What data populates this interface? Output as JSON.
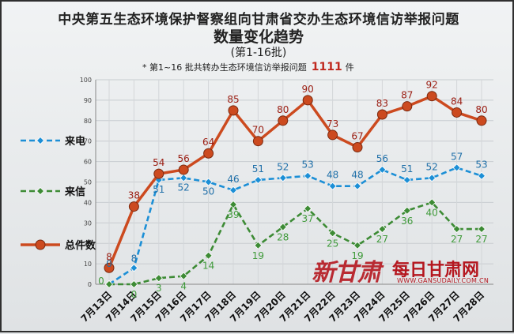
{
  "title": {
    "line1": "中央第五生态环境保护督察组向甘肃省交办生态环境信访举报问题",
    "line2": "数量变化趋势",
    "line3": "(第1-16批)"
  },
  "note": {
    "prefix": "* 第1~16 批共转办生态环境信访举报问题",
    "count": "1111",
    "suffix": "件"
  },
  "watermark": {
    "brand_cn": "新甘肃",
    "brand_daily": "每日甘肃网",
    "url": "WWW.GANSUDAILY.COM.CN"
  },
  "chart_data": {
    "type": "line",
    "title": "数量变化趋势",
    "categories": [
      "7月13日",
      "7月14日",
      "7月15日",
      "7月16日",
      "7月17日",
      "7月18日",
      "7月19日",
      "7月20日",
      "7月21日",
      "7月22日",
      "7月23日",
      "7月24日",
      "7月25日",
      "7月26日",
      "7月27日",
      "7月28日"
    ],
    "ylim": [
      0,
      100
    ],
    "yticks": [
      0,
      10,
      20,
      30,
      40,
      50,
      60,
      70,
      80,
      90,
      100
    ],
    "grid": true,
    "legend_position": "left",
    "series": [
      {
        "name": "来电",
        "color": "#1c8fd6",
        "style": "dashed",
        "marker": "diamond",
        "values": [
          0,
          8,
          51,
          52,
          50,
          46,
          51,
          52,
          53,
          48,
          48,
          56,
          51,
          52,
          57,
          53
        ]
      },
      {
        "name": "来信",
        "color": "#3d8b35",
        "style": "dashed",
        "marker": "diamond",
        "values": [
          0,
          0,
          3,
          4,
          14,
          39,
          19,
          28,
          37,
          25,
          19,
          27,
          36,
          40,
          27,
          27
        ]
      },
      {
        "name": "总件数",
        "color": "#cc4a1f",
        "style": "solid",
        "marker": "circle",
        "values": [
          8,
          38,
          54,
          56,
          64,
          85,
          70,
          80,
          90,
          73,
          67,
          83,
          87,
          92,
          84,
          80
        ]
      }
    ]
  }
}
